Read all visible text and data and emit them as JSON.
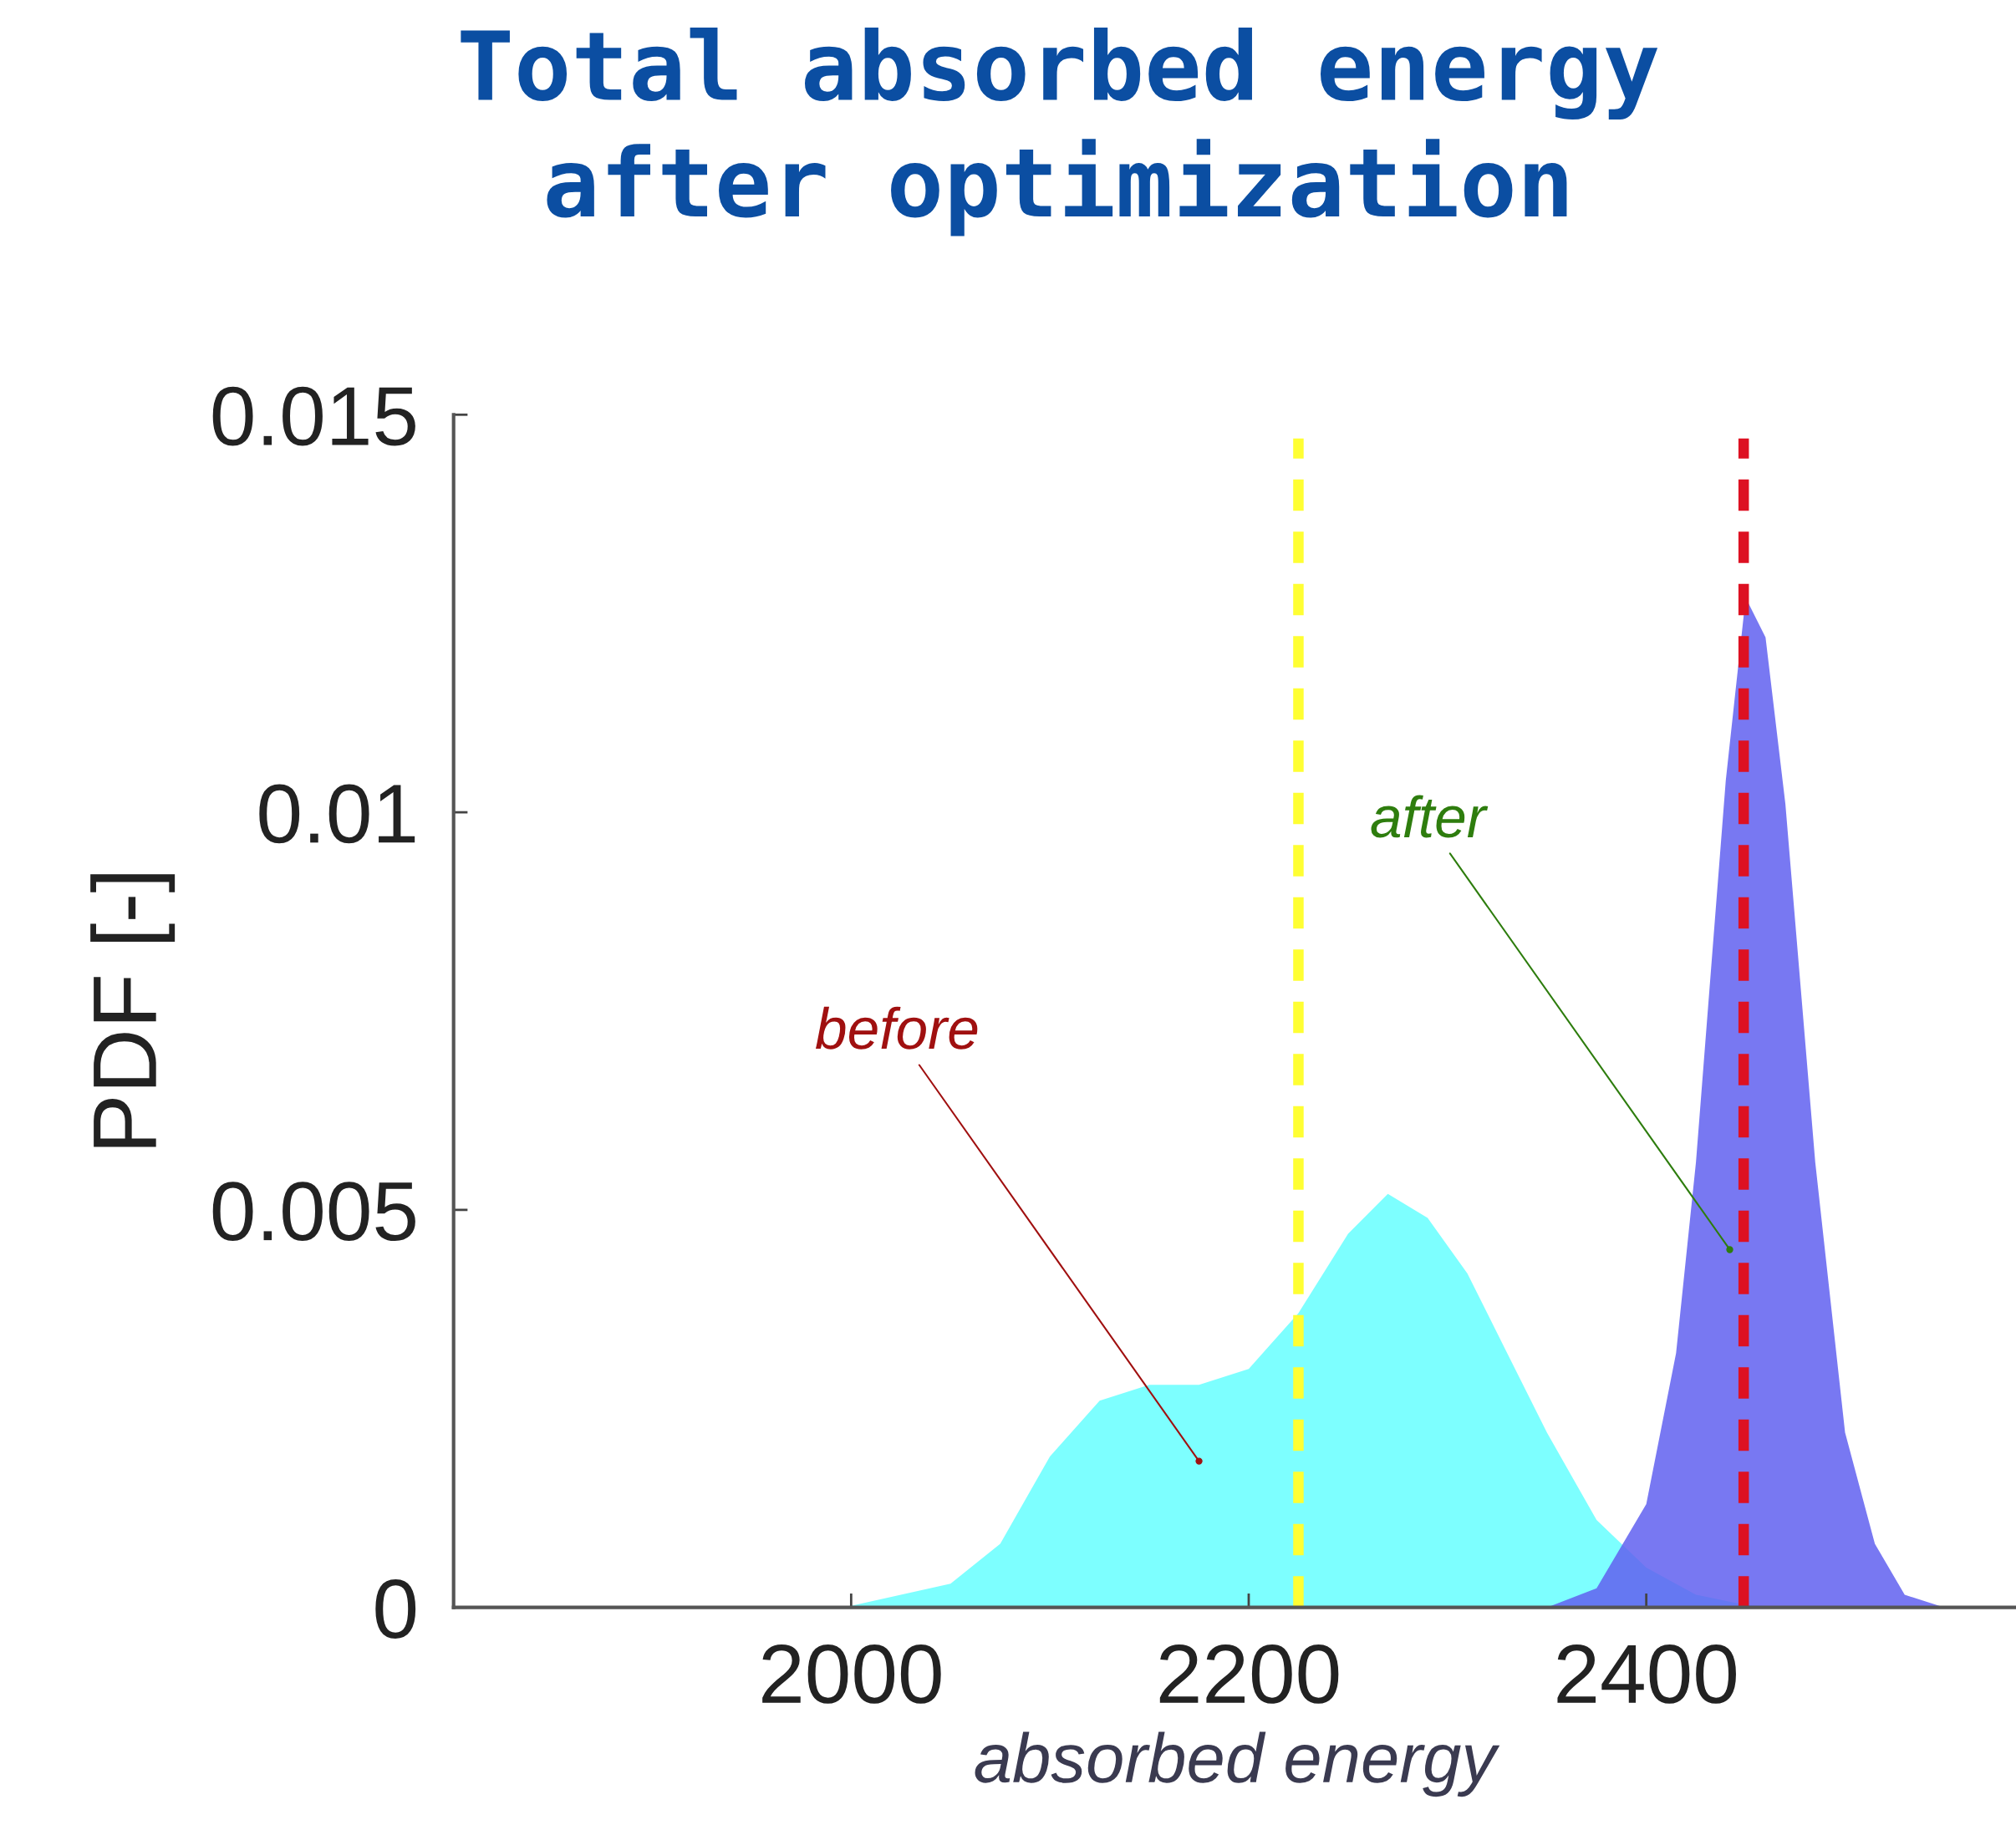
{
  "chart_data": {
    "type": "area",
    "title": "Total absorbed energy\nafter optimization",
    "xlabel": "absorbed energy",
    "ylabel": "PDF [-]",
    "xlim": [
      1800,
      2586
    ],
    "xticks": [
      2000,
      2200,
      2400
    ],
    "ylim": [
      0,
      0.015
    ],
    "yticks": [
      0,
      0.005,
      {
        "value": 0.01,
        "label": "0.01"
      },
      0.015
    ],
    "series": [
      {
        "color": "#66ffff",
        "x": [
          1990,
          2000,
          2050,
          2075,
          2100,
          2125,
          2150,
          2175,
          2200,
          2225,
          2250,
          2270,
          2290,
          2310,
          2330,
          2350,
          2375,
          2400,
          2425,
          2450,
          2475
        ],
        "values": [
          0,
          2e-05,
          0.0003,
          0.0008,
          0.0019,
          0.0026,
          0.0028,
          0.0028,
          0.003,
          0.0037,
          0.0047,
          0.0052,
          0.0049,
          0.0042,
          0.0032,
          0.0022,
          0.0011,
          0.0005,
          0.00016,
          3e-05,
          0
        ]
      },
      {
        "color": "#6060f0",
        "x": [
          2350,
          2375,
          2400,
          2415,
          2425,
          2440,
          2450,
          2460,
          2470,
          2485,
          2500,
          2515,
          2530,
          2550
        ],
        "values": [
          0,
          0.00024,
          0.0013,
          0.0032,
          0.0056,
          0.0104,
          0.0127,
          0.0122,
          0.0101,
          0.0056,
          0.0022,
          0.0008,
          0.00016,
          0
        ]
      }
    ],
    "ref_lines": [
      {
        "axis": "x",
        "value": 2225,
        "color": "#ffff33",
        "line_style": "dashed"
      },
      {
        "axis": "x",
        "value": 2449,
        "color": "#dd1122",
        "line_style": "dashed"
      }
    ],
    "annotations": [
      {
        "text": "before",
        "x": 2175,
        "y": 0.00184
      },
      {
        "text": "after",
        "x": 2442,
        "y": 0.0045
      }
    ],
    "grid": false,
    "legend": false
  }
}
